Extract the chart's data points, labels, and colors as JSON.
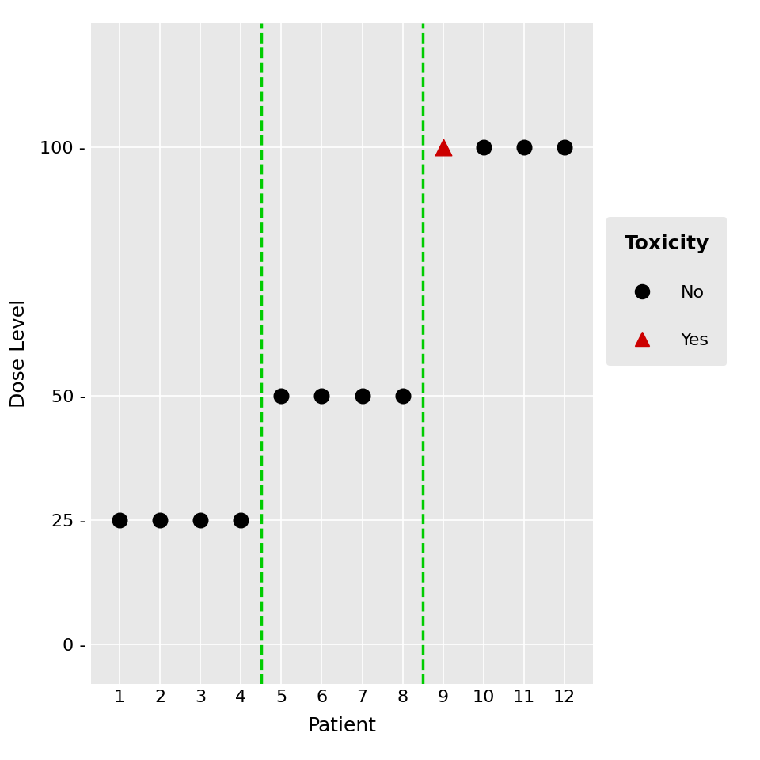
{
  "patients": [
    1,
    2,
    3,
    4,
    5,
    6,
    7,
    8,
    9,
    10,
    11,
    12
  ],
  "doses": [
    25,
    25,
    25,
    25,
    50,
    50,
    50,
    50,
    100,
    100,
    100,
    100
  ],
  "dlt": [
    false,
    false,
    false,
    false,
    false,
    false,
    false,
    false,
    true,
    false,
    false,
    false
  ],
  "cohort_dividers": [
    4.5,
    8.5
  ],
  "divider_color": "#00CC00",
  "divider_lw": 2.5,
  "no_dlt_color": "#000000",
  "dlt_color": "#CC0000",
  "no_dlt_marker_size": 180,
  "dlt_marker_size": 220,
  "xlabel": "Patient",
  "ylabel": "Dose Level",
  "xlim": [
    0.3,
    12.7
  ],
  "ylim": [
    -8,
    125
  ],
  "yticks": [
    0,
    25,
    50,
    100
  ],
  "ytick_labels": [
    "0 -",
    "25 -",
    "50 -",
    "100 -"
  ],
  "xticks": [
    1,
    2,
    3,
    4,
    5,
    6,
    7,
    8,
    9,
    10,
    11,
    12
  ],
  "bg_color": "#E8E8E8",
  "grid_color": "#FFFFFF",
  "legend_title": "Toxicity",
  "legend_no_label": "No",
  "legend_yes_label": "Yes",
  "legend_bg_color": "#E8E8E8",
  "fig_width": 9.6,
  "fig_height": 9.6,
  "label_fontsize": 18,
  "tick_fontsize": 16,
  "legend_title_fontsize": 18,
  "legend_fontsize": 16
}
